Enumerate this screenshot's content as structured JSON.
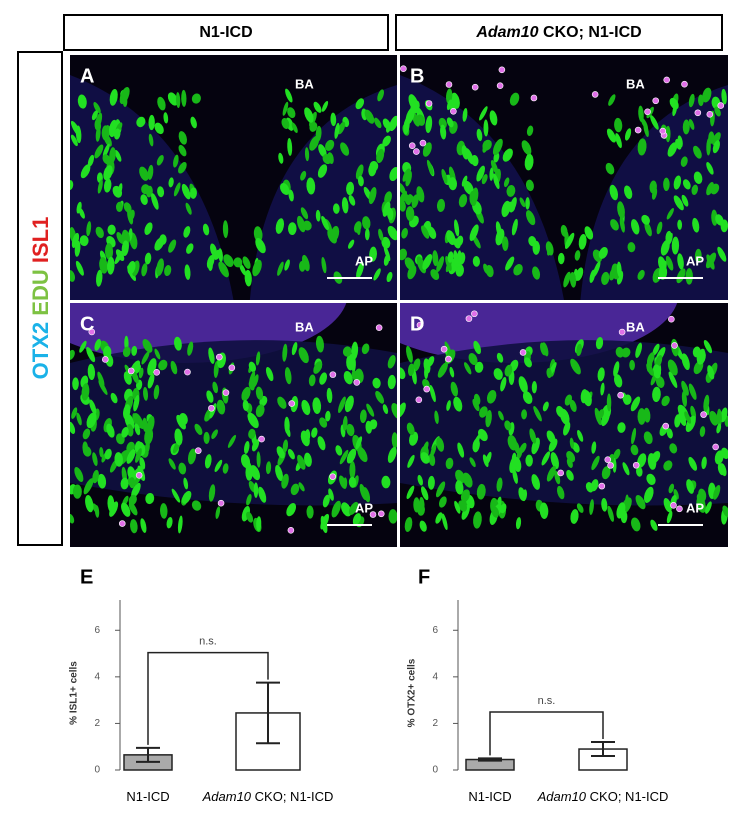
{
  "columns": [
    {
      "label": "N1-ICD"
    },
    {
      "prefix": "Adam10",
      "label": "CKO; N1-ICD"
    }
  ],
  "stains": [
    {
      "name": "OTX2",
      "color": "#1ab2e8"
    },
    {
      "name": "EDU",
      "color": "#7dc242"
    },
    {
      "name": "ISL1",
      "color": "#e02020"
    }
  ],
  "panels": [
    {
      "letter": "A",
      "top": "BA",
      "bottom": "AP"
    },
    {
      "letter": "B",
      "top": "BA",
      "bottom": "AP"
    },
    {
      "letter": "C",
      "top": "BA",
      "bottom": "AP"
    },
    {
      "letter": "D",
      "top": "BA",
      "bottom": "AP"
    }
  ],
  "chart_data": [
    {
      "type": "bar",
      "panel": "E",
      "ylabel": "% ISL1+ cells",
      "categories": [
        "N1-ICD",
        "CKO; N1-ICD"
      ],
      "category_prefixes": [
        null,
        "Adam10"
      ],
      "values": [
        0.65,
        2.45
      ],
      "errors": [
        0.3,
        1.3
      ],
      "colors": [
        "#aaaaaa",
        "#ffffff"
      ],
      "annotation": "n.s.",
      "ylim": [
        0,
        7.3
      ],
      "yticks": [
        0,
        2,
        4,
        6
      ]
    },
    {
      "type": "bar",
      "panel": "F",
      "ylabel": "% OTX2+ cells",
      "categories": [
        "N1-ICD",
        "CKO; N1-ICD"
      ],
      "category_prefixes": [
        null,
        "Adam10"
      ],
      "values": [
        0.45,
        0.9
      ],
      "errors": [
        0.05,
        0.3
      ],
      "colors": [
        "#aaaaaa",
        "#ffffff"
      ],
      "annotation": "n.s.",
      "ylim": [
        0,
        7.3
      ],
      "yticks": [
        0,
        2,
        4,
        6
      ]
    }
  ]
}
